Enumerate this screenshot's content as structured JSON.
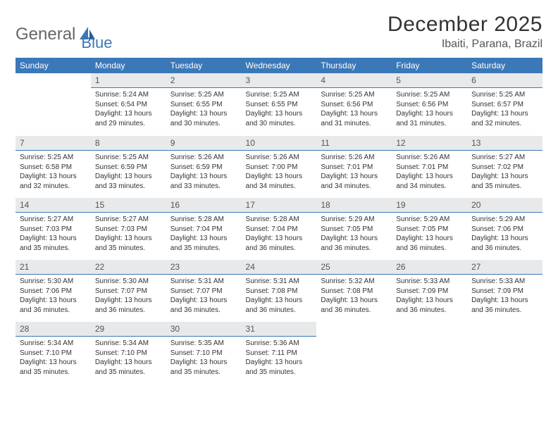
{
  "logo": {
    "text1": "General",
    "text2": "Blue"
  },
  "title": "December 2025",
  "location": "Ibaiti, Parana, Brazil",
  "colors": {
    "header_bg": "#3b78b8",
    "header_text": "#ffffff",
    "daynum_bg": "#e8e9ea",
    "daynum_border": "#3b78b8",
    "body_bg": "#ffffff",
    "text": "#333333"
  },
  "daysOfWeek": [
    "Sunday",
    "Monday",
    "Tuesday",
    "Wednesday",
    "Thursday",
    "Friday",
    "Saturday"
  ],
  "weeks": [
    [
      {
        "empty": true
      },
      {
        "n": "1",
        "sr": "5:24 AM",
        "ss": "6:54 PM",
        "dl": "13 hours and 29 minutes."
      },
      {
        "n": "2",
        "sr": "5:25 AM",
        "ss": "6:55 PM",
        "dl": "13 hours and 30 minutes."
      },
      {
        "n": "3",
        "sr": "5:25 AM",
        "ss": "6:55 PM",
        "dl": "13 hours and 30 minutes."
      },
      {
        "n": "4",
        "sr": "5:25 AM",
        "ss": "6:56 PM",
        "dl": "13 hours and 31 minutes."
      },
      {
        "n": "5",
        "sr": "5:25 AM",
        "ss": "6:56 PM",
        "dl": "13 hours and 31 minutes."
      },
      {
        "n": "6",
        "sr": "5:25 AM",
        "ss": "6:57 PM",
        "dl": "13 hours and 32 minutes."
      }
    ],
    [
      {
        "n": "7",
        "sr": "5:25 AM",
        "ss": "6:58 PM",
        "dl": "13 hours and 32 minutes."
      },
      {
        "n": "8",
        "sr": "5:25 AM",
        "ss": "6:59 PM",
        "dl": "13 hours and 33 minutes."
      },
      {
        "n": "9",
        "sr": "5:26 AM",
        "ss": "6:59 PM",
        "dl": "13 hours and 33 minutes."
      },
      {
        "n": "10",
        "sr": "5:26 AM",
        "ss": "7:00 PM",
        "dl": "13 hours and 34 minutes."
      },
      {
        "n": "11",
        "sr": "5:26 AM",
        "ss": "7:01 PM",
        "dl": "13 hours and 34 minutes."
      },
      {
        "n": "12",
        "sr": "5:26 AM",
        "ss": "7:01 PM",
        "dl": "13 hours and 34 minutes."
      },
      {
        "n": "13",
        "sr": "5:27 AM",
        "ss": "7:02 PM",
        "dl": "13 hours and 35 minutes."
      }
    ],
    [
      {
        "n": "14",
        "sr": "5:27 AM",
        "ss": "7:03 PM",
        "dl": "13 hours and 35 minutes."
      },
      {
        "n": "15",
        "sr": "5:27 AM",
        "ss": "7:03 PM",
        "dl": "13 hours and 35 minutes."
      },
      {
        "n": "16",
        "sr": "5:28 AM",
        "ss": "7:04 PM",
        "dl": "13 hours and 35 minutes."
      },
      {
        "n": "17",
        "sr": "5:28 AM",
        "ss": "7:04 PM",
        "dl": "13 hours and 36 minutes."
      },
      {
        "n": "18",
        "sr": "5:29 AM",
        "ss": "7:05 PM",
        "dl": "13 hours and 36 minutes."
      },
      {
        "n": "19",
        "sr": "5:29 AM",
        "ss": "7:05 PM",
        "dl": "13 hours and 36 minutes."
      },
      {
        "n": "20",
        "sr": "5:29 AM",
        "ss": "7:06 PM",
        "dl": "13 hours and 36 minutes."
      }
    ],
    [
      {
        "n": "21",
        "sr": "5:30 AM",
        "ss": "7:06 PM",
        "dl": "13 hours and 36 minutes."
      },
      {
        "n": "22",
        "sr": "5:30 AM",
        "ss": "7:07 PM",
        "dl": "13 hours and 36 minutes."
      },
      {
        "n": "23",
        "sr": "5:31 AM",
        "ss": "7:07 PM",
        "dl": "13 hours and 36 minutes."
      },
      {
        "n": "24",
        "sr": "5:31 AM",
        "ss": "7:08 PM",
        "dl": "13 hours and 36 minutes."
      },
      {
        "n": "25",
        "sr": "5:32 AM",
        "ss": "7:08 PM",
        "dl": "13 hours and 36 minutes."
      },
      {
        "n": "26",
        "sr": "5:33 AM",
        "ss": "7:09 PM",
        "dl": "13 hours and 36 minutes."
      },
      {
        "n": "27",
        "sr": "5:33 AM",
        "ss": "7:09 PM",
        "dl": "13 hours and 36 minutes."
      }
    ],
    [
      {
        "n": "28",
        "sr": "5:34 AM",
        "ss": "7:10 PM",
        "dl": "13 hours and 35 minutes."
      },
      {
        "n": "29",
        "sr": "5:34 AM",
        "ss": "7:10 PM",
        "dl": "13 hours and 35 minutes."
      },
      {
        "n": "30",
        "sr": "5:35 AM",
        "ss": "7:10 PM",
        "dl": "13 hours and 35 minutes."
      },
      {
        "n": "31",
        "sr": "5:36 AM",
        "ss": "7:11 PM",
        "dl": "13 hours and 35 minutes."
      },
      {
        "empty": true
      },
      {
        "empty": true
      },
      {
        "empty": true
      }
    ]
  ],
  "labels": {
    "sunrise": "Sunrise:",
    "sunset": "Sunset:",
    "daylight": "Daylight:"
  }
}
